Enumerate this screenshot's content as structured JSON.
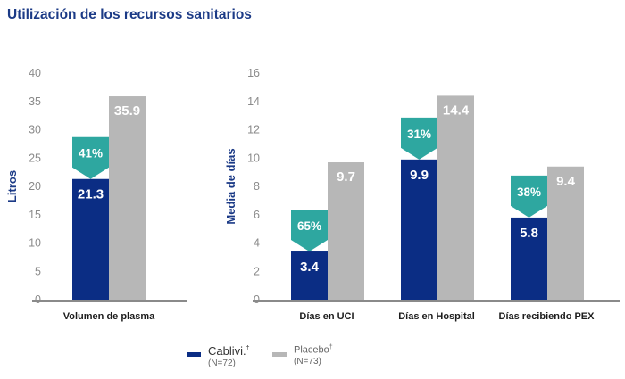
{
  "title": "Utilización de los recursos sanitarios",
  "colors": {
    "cablivi": "#0b2d84",
    "placebo": "#b7b7b7",
    "reduction": "#2ea7a0",
    "axis": "#8a8a8a"
  },
  "chart_data": [
    {
      "type": "bar",
      "ylabel": "Litros",
      "ylim": [
        0,
        40
      ],
      "yticks": [
        0,
        5,
        10,
        15,
        20,
        25,
        30,
        35,
        40
      ],
      "categories": [
        "Volumen de plasma"
      ],
      "series": [
        {
          "name": "Cablivi.",
          "values": [
            21.3
          ],
          "labels": [
            "21.3"
          ]
        },
        {
          "name": "Placebo",
          "values": [
            35.9
          ],
          "labels": [
            "35.9"
          ]
        }
      ],
      "reductions": [
        "41%"
      ]
    },
    {
      "type": "bar",
      "ylabel": "Media de días",
      "ylim": [
        0,
        16
      ],
      "yticks": [
        0,
        2,
        4,
        6,
        8,
        10,
        12,
        14,
        16
      ],
      "categories": [
        "Días en UCI",
        "Días en Hospital",
        "Días recibiendo PEX"
      ],
      "series": [
        {
          "name": "Cablivi.",
          "values": [
            3.4,
            9.9,
            5.8
          ],
          "labels": [
            "3.4",
            "9.9",
            "5.8"
          ]
        },
        {
          "name": "Placebo",
          "values": [
            9.7,
            14.4,
            9.4
          ],
          "labels": [
            "9.7",
            "14.4",
            "9.4"
          ]
        }
      ],
      "reductions": [
        "65%",
        "31%",
        "38%"
      ]
    }
  ],
  "legend": [
    {
      "name": "Cablivi.",
      "mark": "†",
      "n": "(N=72)"
    },
    {
      "name": "Placebo",
      "mark": "†",
      "n": "(N=73)"
    }
  ]
}
